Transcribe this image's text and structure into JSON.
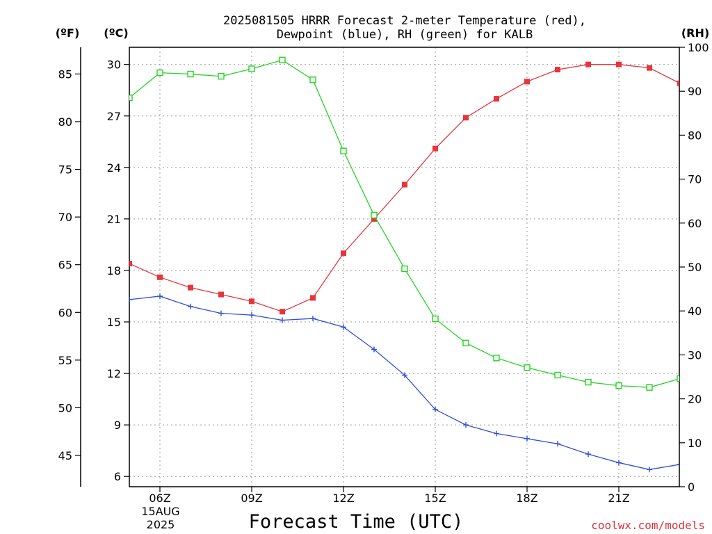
{
  "title": {
    "line1": "2025081505 HRRR Forecast 2-meter Temperature (red),",
    "line2": "Dewpoint (blue), RH (green) for KALB"
  },
  "axes": {
    "f_unit": "(ºF)",
    "c_unit": "(ºC)",
    "rh_unit": "(RH)"
  },
  "xlabel": "Forecast Time (UTC)",
  "date_label": {
    "line1": "15AUG",
    "line2": "2025"
  },
  "credit": "coolwx.com/models",
  "colors": {
    "temperature": "#e8343c",
    "dewpoint": "#2c4ede",
    "rh": "#22d422",
    "grid": "#9a9a9a"
  },
  "chart_data": {
    "type": "line",
    "x": [
      "05Z",
      "06Z",
      "07Z",
      "08Z",
      "09Z",
      "10Z",
      "11Z",
      "12Z",
      "13Z",
      "14Z",
      "15Z",
      "16Z",
      "17Z",
      "18Z",
      "19Z",
      "20Z",
      "21Z",
      "22Z",
      "23Z"
    ],
    "x_tick_labels": [
      "06Z",
      "09Z",
      "12Z",
      "15Z",
      "18Z",
      "21Z"
    ],
    "y_left_celsius": {
      "ticks": [
        6,
        9,
        12,
        15,
        18,
        21,
        24,
        27,
        30
      ],
      "range": [
        5.4,
        31.0
      ]
    },
    "y_left_fahrenheit": {
      "ticks": [
        45,
        50,
        55,
        60,
        65,
        70,
        75,
        80,
        85
      ]
    },
    "y_right_rh": {
      "ticks": [
        0,
        10,
        20,
        30,
        40,
        50,
        60,
        70,
        80,
        90,
        100
      ],
      "range": [
        0,
        100
      ]
    },
    "grid": true,
    "series": [
      {
        "name": "Temperature",
        "axis": "celsius",
        "marker": "filled-square",
        "values": [
          18.4,
          17.6,
          17.0,
          16.6,
          16.2,
          15.6,
          16.4,
          19.0,
          21.0,
          23.0,
          25.1,
          26.9,
          28.0,
          29.0,
          29.7,
          30.0,
          30.0,
          29.8,
          28.9
        ]
      },
      {
        "name": "Dewpoint",
        "axis": "celsius",
        "marker": "plus",
        "values": [
          16.3,
          16.5,
          15.9,
          15.5,
          15.4,
          15.1,
          15.2,
          14.7,
          13.4,
          11.9,
          9.9,
          9.0,
          8.5,
          8.2,
          7.9,
          7.3,
          6.8,
          6.4,
          6.7
        ]
      },
      {
        "name": "RH",
        "axis": "rh",
        "marker": "open-square",
        "values": [
          88.5,
          94.2,
          93.9,
          93.4,
          95.1,
          97.1,
          92.6,
          76.4,
          61.8,
          49.6,
          38.2,
          32.7,
          29.3,
          27.1,
          25.4,
          23.8,
          23.0,
          22.6,
          24.6
        ]
      }
    ]
  }
}
